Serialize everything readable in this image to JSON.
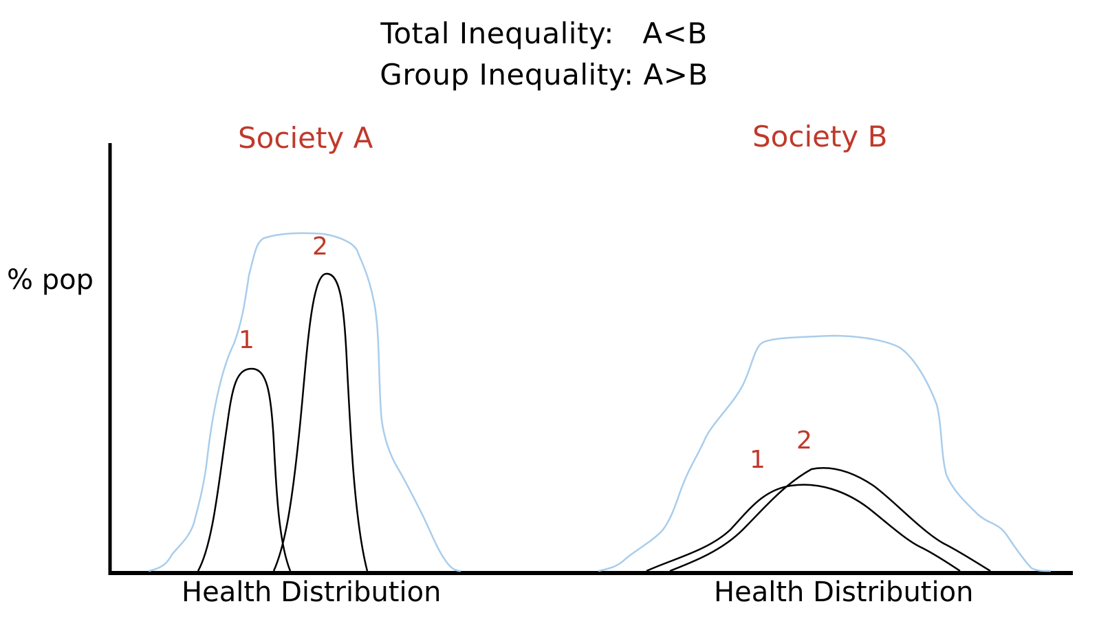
{
  "title": {
    "line1": "Total Inequality:   A<B",
    "line2": "Group Inequality: A>B"
  },
  "axes": {
    "ylabel": "% pop",
    "xlabel_a": "Health Distribution",
    "xlabel_b": "Health Distribution"
  },
  "societies": [
    {
      "name": "Society A",
      "groups": [
        "1",
        "2"
      ]
    },
    {
      "name": "Society B",
      "groups": [
        "1",
        "2"
      ]
    }
  ],
  "colors": {
    "label_accent": "#c0392b",
    "total_curve": "#a9cdec",
    "group_curve": "#000000",
    "axis": "#000000"
  }
}
